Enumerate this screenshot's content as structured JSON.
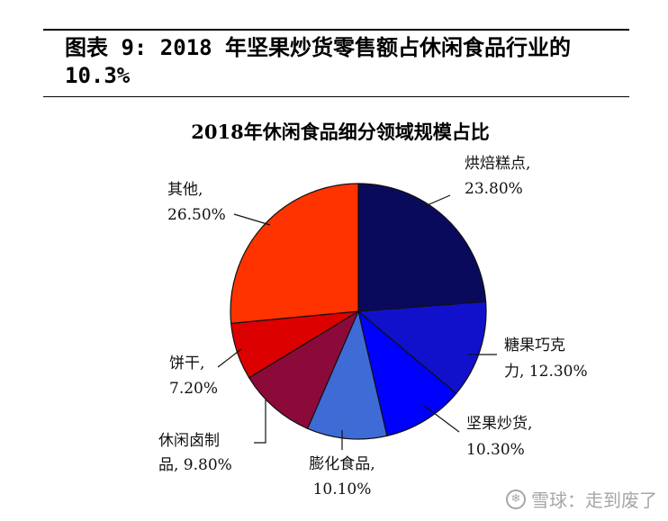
{
  "figure": {
    "title_line1": "图表 9: 2018 年坚果炒货零售额占休闲食品行业的",
    "title_line2": "10.3%"
  },
  "watermark": {
    "icon": "snowball-logo-icon",
    "text": "雪球：走到废了"
  },
  "chart_data": {
    "type": "pie",
    "title": "2018年休闲食品细分领域规模占比",
    "start_angle_deg": 0,
    "direction": "clockwise",
    "slices": [
      {
        "label": "烘焙糕点",
        "value": 23.8,
        "value_text": "23.80%",
        "color": "#0a0a5c"
      },
      {
        "label": "糖果巧克力",
        "value": 12.3,
        "value_text": "12.30%",
        "color": "#1111cc"
      },
      {
        "label": "坚果炒货",
        "value": 10.3,
        "value_text": "10.30%",
        "color": "#0000ff"
      },
      {
        "label": "膨化食品",
        "value": 10.1,
        "value_text": "10.10%",
        "color": "#3f6bd6"
      },
      {
        "label": "休闲卤制品",
        "value": 9.8,
        "value_text": "9.80%",
        "color": "#8b0a3a"
      },
      {
        "label": "饼干",
        "value": 7.2,
        "value_text": "7.20%",
        "color": "#dd0000"
      },
      {
        "label": "其他",
        "value": 26.5,
        "value_text": "26.50%",
        "color": "#ff3300"
      }
    ]
  }
}
